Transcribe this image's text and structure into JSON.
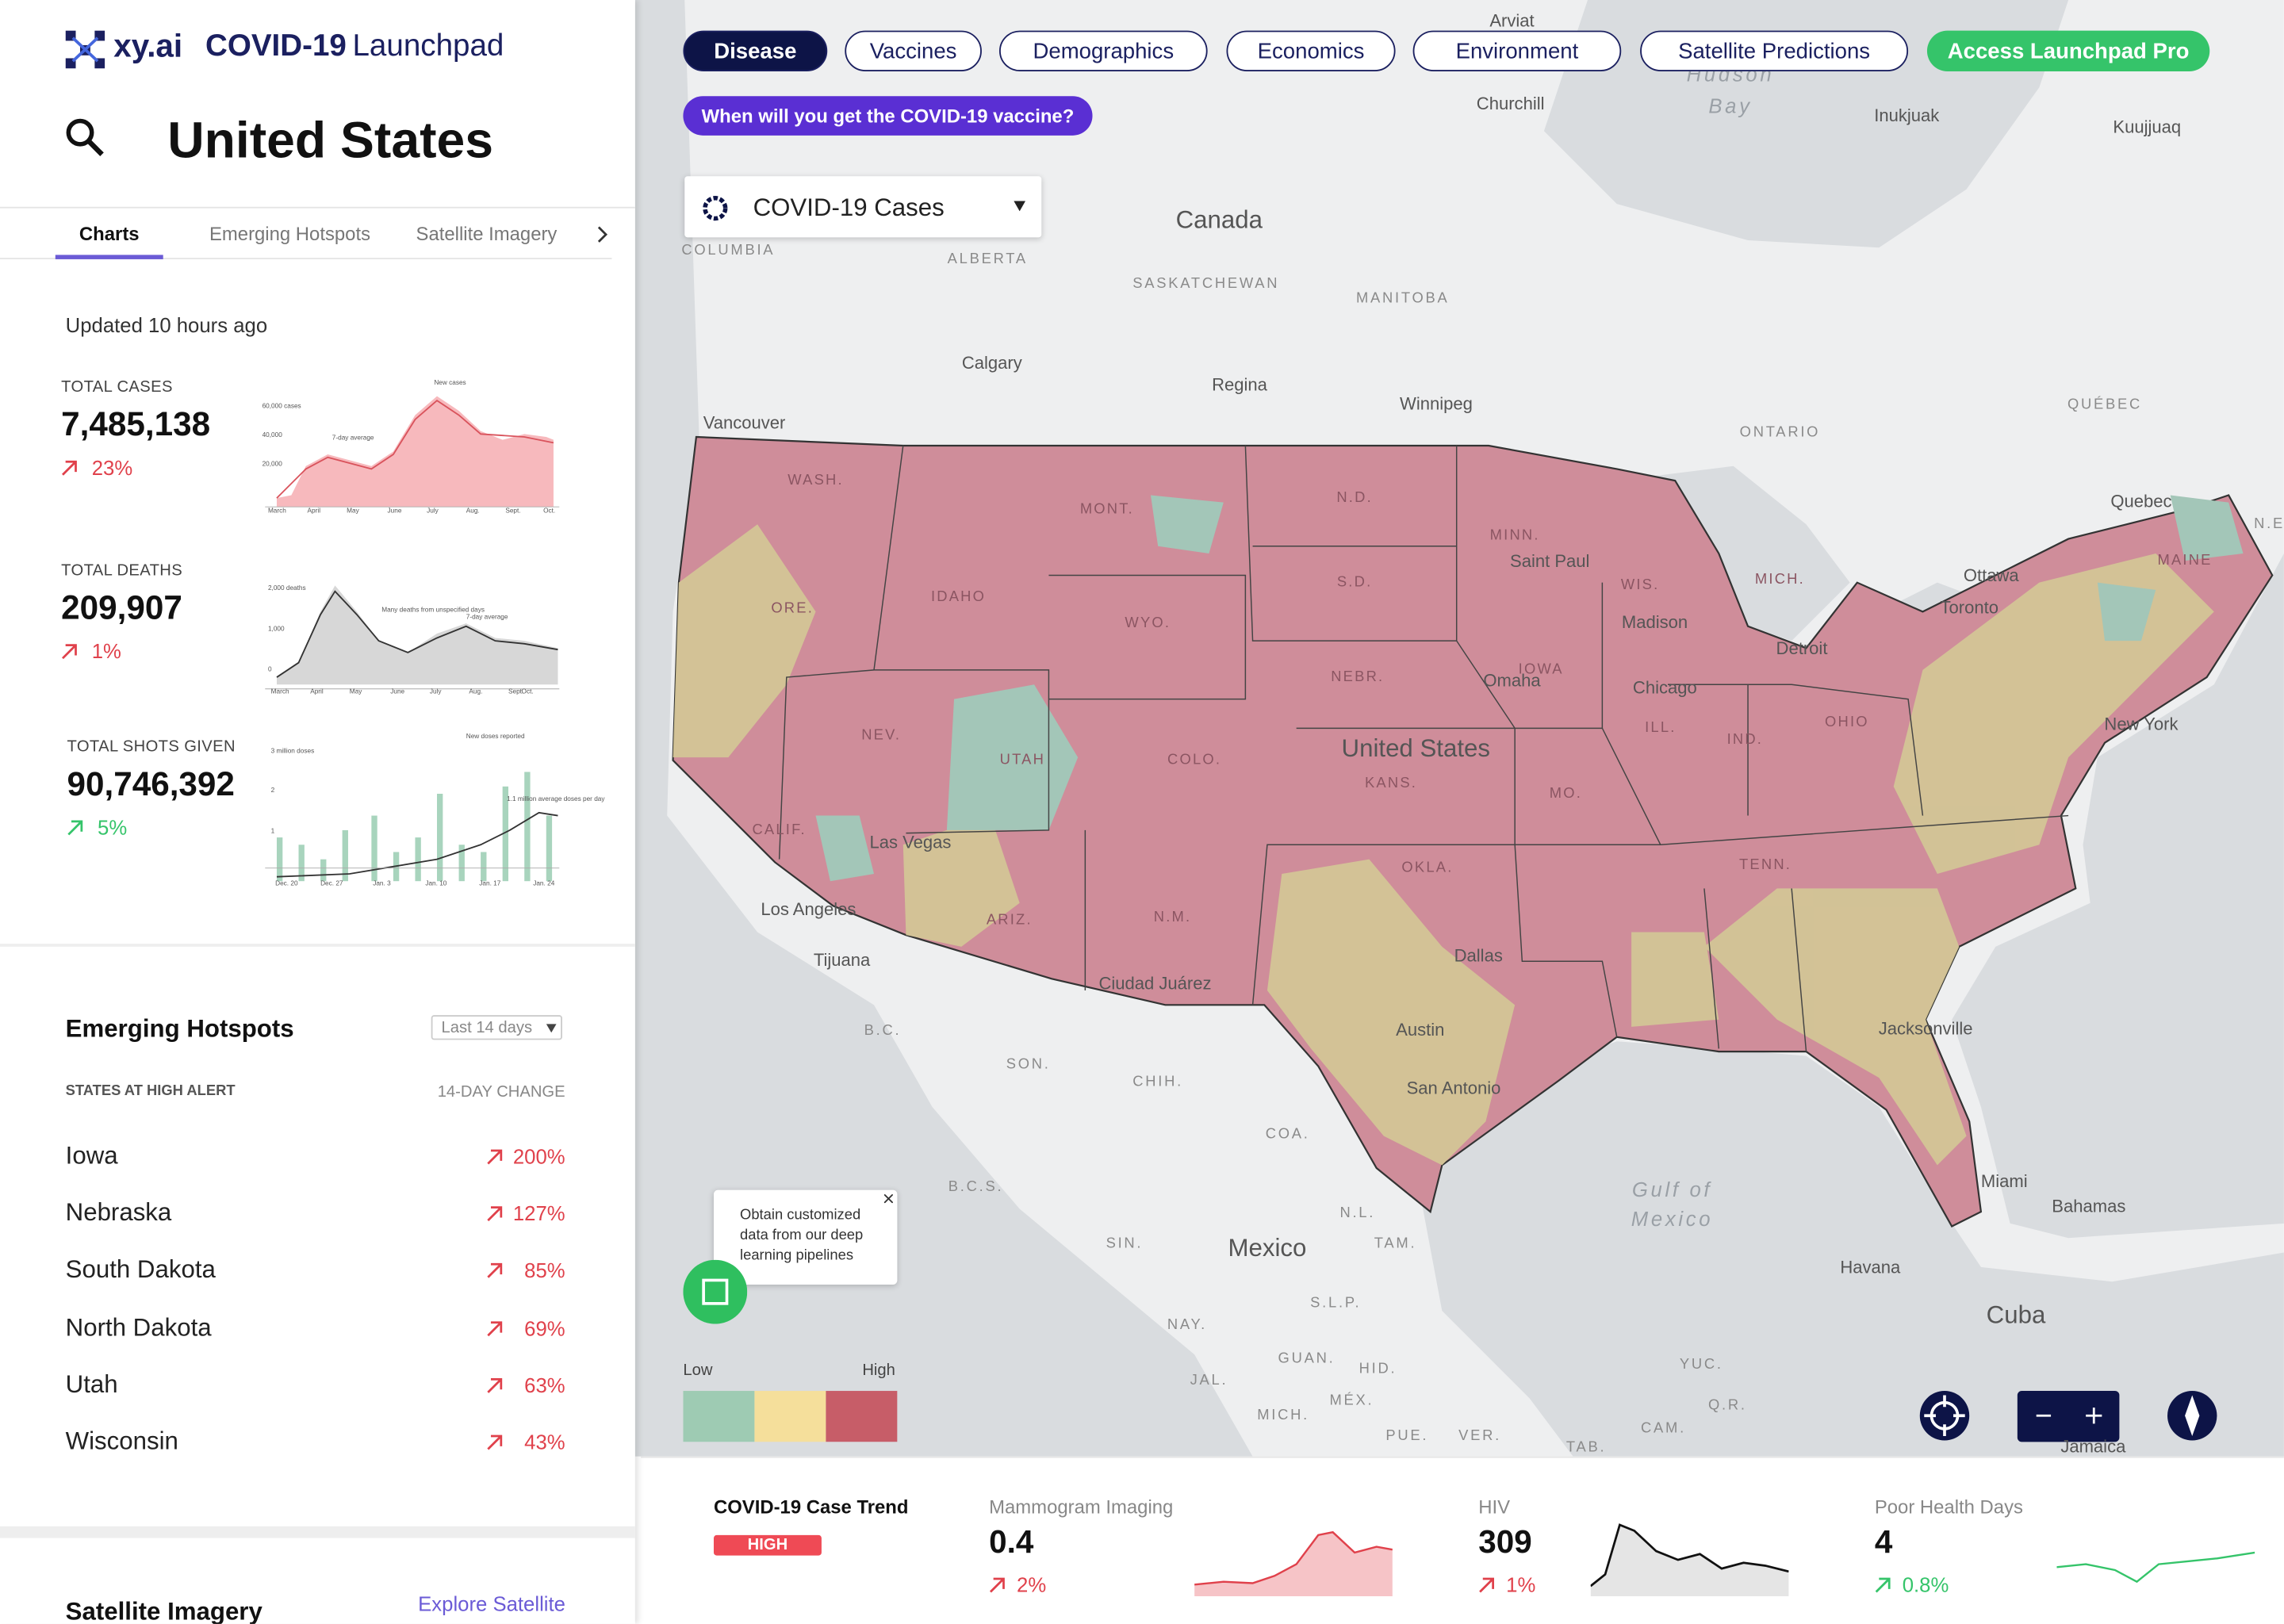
{
  "header": {
    "brand": "xy.ai",
    "product": "COVID-19",
    "product_suffix": "Launchpad",
    "location": "United States"
  },
  "tabs": [
    "Charts",
    "Emerging Hotspots",
    "Satellite Imagery"
  ],
  "updated": "Updated 10 hours ago",
  "stats": [
    {
      "label": "TOTAL CASES",
      "value": "7,485,138",
      "change": "23%",
      "chart_labels": [
        "60,000 cases",
        "40,000",
        "20,000",
        "March",
        "April",
        "May",
        "June",
        "July",
        "Aug.",
        "Sept.",
        "Oct.",
        "7-day average",
        "New cases"
      ]
    },
    {
      "label": "TOTAL DEATHS",
      "value": "209,907",
      "change": "1%",
      "chart_labels": [
        "2,000 deaths",
        "1,000",
        "0",
        "March",
        "April",
        "May",
        "June",
        "July",
        "Aug.",
        "Sept.",
        "Oct.",
        "Many deaths from unspecified days",
        "7-day average"
      ]
    },
    {
      "label": "TOTAL SHOTS GIVEN",
      "value": "90,746,392",
      "change": "5%",
      "chart_labels": [
        "3 million doses",
        "2",
        "1",
        "Dec. 20",
        "Dec. 27",
        "Jan. 3",
        "Jan. 10",
        "Jan. 17",
        "Jan. 24",
        "New doses reported",
        "1.1 million average doses per day"
      ]
    }
  ],
  "hotspots": {
    "title": "Emerging Hotspots",
    "filter": "Last 14 days",
    "col1": "STATES AT HIGH ALERT",
    "col2": "14-DAY CHANGE",
    "rows": [
      {
        "state": "Iowa",
        "change": "200%"
      },
      {
        "state": "Nebraska",
        "change": "127%"
      },
      {
        "state": "South Dakota",
        "change": "85%"
      },
      {
        "state": "North Dakota",
        "change": "69%"
      },
      {
        "state": "Utah",
        "change": "63%"
      },
      {
        "state": "Wisconsin",
        "change": "43%"
      }
    ]
  },
  "satellite": {
    "title": "Satellite Imagery",
    "link": "Explore Satellite"
  },
  "nav": [
    "Disease",
    "Vaccines",
    "Demographics",
    "Economics",
    "Environment",
    "Satellite Predictions"
  ],
  "pro": "Access Launchpad Pro",
  "banner": "When will you get the COVID-19 vaccine?",
  "layer": "COVID-19 Cases",
  "tooltip": "Obtain customized data from our deep learning pipelines",
  "legend": {
    "low": "Low",
    "high": "High"
  },
  "map_labels": [
    "Canada",
    "ALBERTA",
    "SASKATCHEWAN",
    "MANITOBA",
    "COLUMBIA",
    "Calgary",
    "Regina",
    "Winnipeg",
    "Vancouver",
    "ONTARIO",
    "QUÉBEC",
    "Quebec",
    "Ottawa",
    "Toronto",
    "New York",
    "United States",
    "Las Vegas",
    "Los Angeles",
    "Tijuana",
    "Ciudad Juárez",
    "Dallas",
    "Austin",
    "San Antonio",
    "Jacksonville",
    "Miami",
    "Bahamas",
    "Havana",
    "Cuba",
    "Mexico",
    "Gulf of",
    "Mexico",
    "Hudson",
    "Bay",
    "Churchill",
    "Arviat",
    "Inukjuak",
    "Kuujjuaq",
    "B.C.",
    "SON.",
    "CHIH.",
    "COA.",
    "B.C.S.",
    "N.L.",
    "SIN.",
    "TAM.",
    "S.L.P.",
    "NAY.",
    "GUAN.",
    "HID.",
    "JAL.",
    "MICH.",
    "MÉX.",
    "PUE.",
    "VER.",
    "TAB.",
    "CAM.",
    "YUC.",
    "Q.R.",
    "Jamaica",
    "N.E",
    "WASH.",
    "MONT.",
    "N.D.",
    "MINN.",
    "S.D.",
    "WYO.",
    "IDAHO",
    "ORE.",
    "NEV.",
    "UTAH",
    "COLO.",
    "NEBR.",
    "IOWA",
    "KANS.",
    "MO.",
    "ILL.",
    "IND.",
    "OHIO",
    "MICH.",
    "WIS.",
    "CALIF.",
    "ARIZ.",
    "N.M.",
    "OKLA.",
    "TENN.",
    "MAINE",
    "Chicago",
    "Detroit",
    "Madison",
    "Omaha",
    "Saint Paul"
  ],
  "bottom": {
    "trend_title": "COVID-19 Case Trend",
    "trend_level": "HIGH",
    "metrics": [
      {
        "name": "Mammogram Imaging",
        "value": "0.4",
        "change": "2%"
      },
      {
        "name": "HIV",
        "value": "309",
        "change": "1%"
      },
      {
        "name": "Poor Health Days",
        "value": "4",
        "change": "0.8%"
      }
    ]
  }
}
